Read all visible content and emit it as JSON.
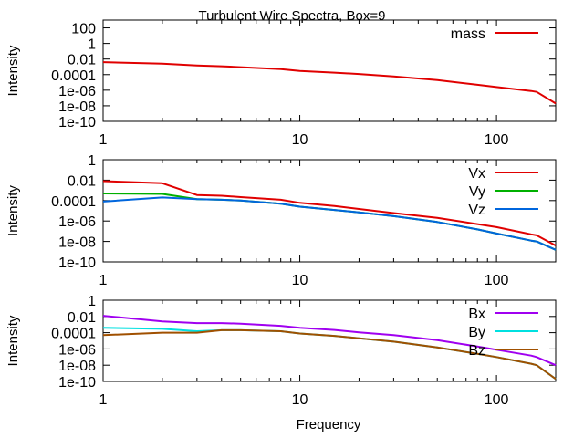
{
  "chart_data": {
    "type": "line",
    "title": "Turbulent Wire Spectra, Box=9",
    "xlabel": "Frequency",
    "x_scale": "log",
    "y_scale": "log",
    "xlim": [
      1,
      200
    ],
    "x_ticks": [
      "1",
      "10",
      "100"
    ],
    "legend_position": "top-right",
    "panels": [
      {
        "ylabel": "Intensity",
        "ylim": [
          1e-10,
          1000
        ],
        "y_ticks": [
          {
            "value": 100,
            "label": "100"
          },
          {
            "value": 1,
            "label": "1"
          },
          {
            "value": 0.01,
            "label": "0.01"
          },
          {
            "value": 0.0001,
            "label": "0.0001"
          },
          {
            "value": 1e-06,
            "label": "1e-06"
          },
          {
            "value": 1e-08,
            "label": "1e-08"
          },
          {
            "value": 1e-10,
            "label": "1e-10"
          }
        ],
        "series": [
          {
            "name": "mass",
            "color": "#e00000",
            "x": [
              1,
              2,
              3,
              4,
              5,
              8,
              10,
              15,
              20,
              30,
              50,
              80,
              100,
              150,
              160,
              200
            ],
            "y": [
              0.004,
              0.0025,
              0.0015,
              0.0012,
              0.0009,
              0.0005,
              0.0003,
              0.00018,
              0.00012,
              6e-05,
              2e-05,
              5e-06,
              2.5e-06,
              8e-07,
              6e-07,
              2e-08
            ]
          }
        ]
      },
      {
        "ylabel": "Intensity",
        "ylim": [
          1e-10,
          1
        ],
        "y_ticks": [
          {
            "value": 1,
            "label": "1"
          },
          {
            "value": 0.01,
            "label": "0.01"
          },
          {
            "value": 0.0001,
            "label": "0.0001"
          },
          {
            "value": 1e-06,
            "label": "1e-06"
          },
          {
            "value": 1e-08,
            "label": "1e-08"
          },
          {
            "value": 1e-10,
            "label": "1e-10"
          }
        ],
        "series": [
          {
            "name": "Vx",
            "color": "#e00000",
            "x": [
              1,
              2,
              3,
              4,
              5,
              8,
              10,
              15,
              20,
              30,
              50,
              80,
              100,
              150,
              160,
              200
            ],
            "y": [
              0.008,
              0.005,
              0.00035,
              0.0003,
              0.00022,
              0.00012,
              6e-05,
              3e-05,
              1.5e-05,
              6e-06,
              2e-06,
              5e-07,
              2.5e-07,
              5e-08,
              4e-08,
              4e-09
            ]
          },
          {
            "name": "Vy",
            "color": "#00b000",
            "x": [
              1,
              2,
              3,
              4,
              5,
              8,
              10,
              15,
              20,
              30,
              50,
              80,
              100,
              150,
              160,
              200
            ],
            "y": [
              0.0005,
              0.00045,
              0.00014,
              0.00012,
              0.0001,
              5e-05,
              2.5e-05,
              1.2e-05,
              7e-06,
              3e-06,
              8e-07,
              1.5e-07,
              6e-08,
              1.2e-08,
              1e-08,
              1.5e-09
            ]
          },
          {
            "name": "Vz",
            "color": "#0066dd",
            "x": [
              1,
              2,
              3,
              4,
              5,
              8,
              10,
              15,
              20,
              30,
              50,
              80,
              100,
              150,
              160,
              200
            ],
            "y": [
              8e-05,
              0.0002,
              0.00014,
              0.00012,
              0.0001,
              5e-05,
              2.5e-05,
              1.2e-05,
              7e-06,
              3e-06,
              8e-07,
              1.5e-07,
              6e-08,
              1.2e-08,
              1e-08,
              1.5e-09
            ]
          }
        ]
      },
      {
        "ylabel": "Intensity",
        "ylim": [
          1e-10,
          1
        ],
        "y_ticks": [
          {
            "value": 1,
            "label": "1"
          },
          {
            "value": 0.01,
            "label": "0.01"
          },
          {
            "value": 0.0001,
            "label": "0.0001"
          },
          {
            "value": 1e-06,
            "label": "1e-06"
          },
          {
            "value": 1e-08,
            "label": "1e-08"
          },
          {
            "value": 1e-10,
            "label": "1e-10"
          }
        ],
        "series": [
          {
            "name": "Bx",
            "color": "#a000f0",
            "x": [
              1,
              2,
              3,
              4,
              5,
              8,
              10,
              15,
              20,
              30,
              50,
              80,
              100,
              150,
              160,
              200
            ],
            "y": [
              0.012,
              0.0025,
              0.0015,
              0.0015,
              0.0013,
              0.0007,
              0.0004,
              0.00022,
              0.00011,
              5e-05,
              1.2e-05,
              2e-06,
              8e-07,
              1.5e-07,
              1e-07,
              1e-08
            ]
          },
          {
            "name": "By",
            "color": "#00e0e0",
            "x": [
              1,
              2,
              3,
              4,
              5,
              8,
              10,
              15,
              20,
              30,
              50,
              80,
              100,
              150,
              160,
              200
            ],
            "y": [
              0.0004,
              0.0003,
              0.00015,
              0.0002,
              0.0002,
              0.00015,
              8e-05,
              4e-05,
              2e-05,
              8e-06,
              1.5e-06,
              2.5e-07,
              1e-07,
              1.5e-08,
              1e-08,
              2e-10
            ]
          },
          {
            "name": "Bz",
            "color": "#a05000",
            "x": [
              1,
              2,
              3,
              4,
              5,
              8,
              10,
              15,
              20,
              30,
              50,
              80,
              100,
              150,
              160,
              200
            ],
            "y": [
              5e-05,
              0.0001,
              0.0001,
              0.0002,
              0.0002,
              0.00015,
              8e-05,
              4e-05,
              2e-05,
              8e-06,
              1.5e-06,
              2.5e-07,
              1e-07,
              1.5e-08,
              1e-08,
              2e-10
            ]
          }
        ]
      }
    ]
  }
}
